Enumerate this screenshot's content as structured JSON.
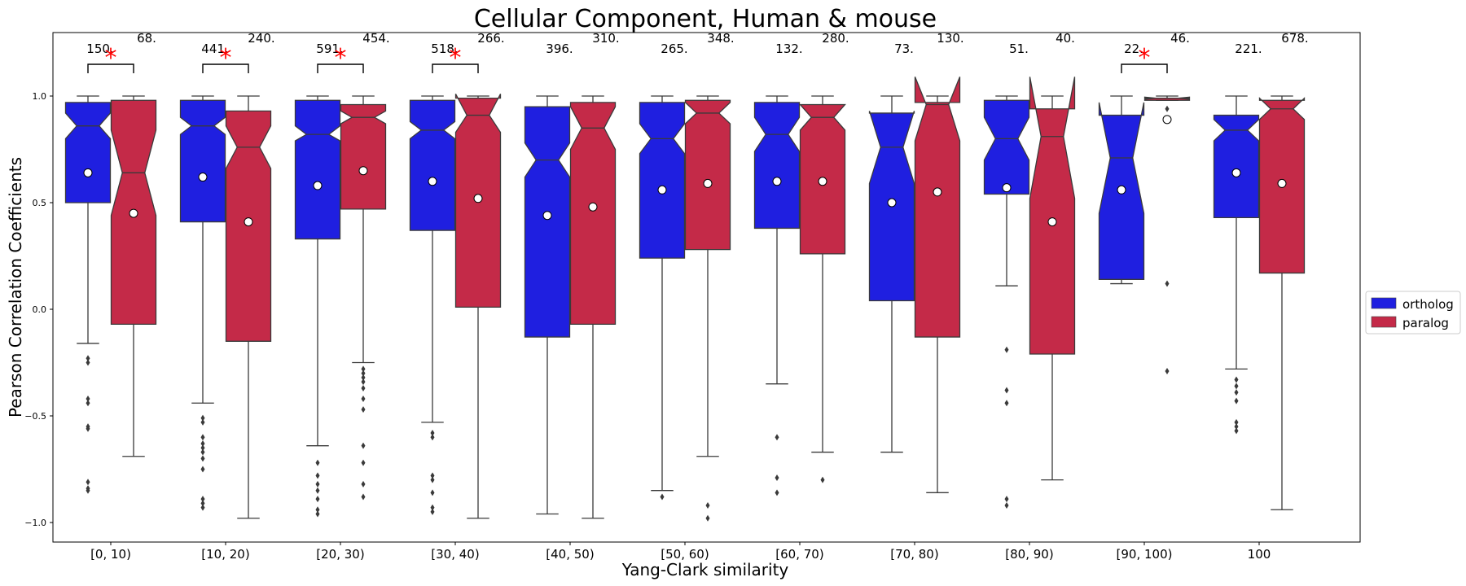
{
  "chart_data": {
    "type": "box",
    "title": "Cellular Component, Human & mouse",
    "xlabel": "Yang-Clark similarity",
    "ylabel": "Pearson Correlation Coefficients",
    "ylim": [
      -1.1,
      1.3
    ],
    "yticks": [
      -1.0,
      -0.5,
      0.0,
      0.5,
      1.0
    ],
    "ytick_labels": [
      "−1.0",
      "−0.5",
      "0.0",
      "0.5",
      "1.0"
    ],
    "categories": [
      "[0, 10)",
      "[10, 20)",
      "[20, 30)",
      "[30, 40)",
      "[40, 50)",
      "[50, 60)",
      "[60, 70)",
      "[70, 80)",
      "[80, 90)",
      "[90, 100)",
      "100"
    ],
    "legend": {
      "position": "right",
      "entries": [
        {
          "name": "ortholog",
          "color": "#1f1fe0"
        },
        {
          "name": "paralog",
          "color": "#c42a48"
        }
      ]
    },
    "significance_marker": "*",
    "significance_color": "#ff0000",
    "series": [
      {
        "name": "ortholog",
        "color": "#1f1fe0",
        "boxes": [
          {
            "count": "150.",
            "lower_whisker": -0.16,
            "q1": 0.5,
            "median": 0.86,
            "q3": 0.97,
            "upper_whisker": 1.0,
            "notch_low": 0.8,
            "notch_high": 0.92,
            "mean": 0.64,
            "outliers": [
              -0.23,
              -0.25,
              -0.42,
              -0.44,
              -0.55,
              -0.56,
              -0.81,
              -0.84,
              -0.85
            ]
          },
          {
            "count": "441.",
            "lower_whisker": -0.44,
            "q1": 0.41,
            "median": 0.86,
            "q3": 0.98,
            "upper_whisker": 1.0,
            "notch_low": 0.82,
            "notch_high": 0.9,
            "mean": 0.62,
            "outliers": [
              -0.51,
              -0.53,
              -0.6,
              -0.63,
              -0.65,
              -0.67,
              -0.7,
              -0.75,
              -0.89,
              -0.91,
              -0.93
            ]
          },
          {
            "count": "591.",
            "lower_whisker": -0.64,
            "q1": 0.33,
            "median": 0.82,
            "q3": 0.98,
            "upper_whisker": 1.0,
            "notch_low": 0.79,
            "notch_high": 0.86,
            "mean": 0.58,
            "outliers": [
              -0.72,
              -0.78,
              -0.82,
              -0.85,
              -0.89,
              -0.94,
              -0.96
            ]
          },
          {
            "count": "518.",
            "lower_whisker": -0.53,
            "q1": 0.37,
            "median": 0.84,
            "q3": 0.98,
            "upper_whisker": 1.0,
            "notch_low": 0.8,
            "notch_high": 0.88,
            "mean": 0.6,
            "outliers": [
              -0.58,
              -0.6,
              -0.78,
              -0.8,
              -0.86,
              -0.93,
              -0.95
            ]
          },
          {
            "count": "396.",
            "lower_whisker": -0.96,
            "q1": -0.13,
            "median": 0.7,
            "q3": 0.95,
            "upper_whisker": 1.0,
            "notch_low": 0.62,
            "notch_high": 0.78,
            "mean": 0.44,
            "outliers": []
          },
          {
            "count": "265.",
            "lower_whisker": -0.85,
            "q1": 0.24,
            "median": 0.8,
            "q3": 0.97,
            "upper_whisker": 1.0,
            "notch_low": 0.73,
            "notch_high": 0.87,
            "mean": 0.56,
            "outliers": [
              -0.88
            ]
          },
          {
            "count": "132.",
            "lower_whisker": -0.35,
            "q1": 0.38,
            "median": 0.82,
            "q3": 0.97,
            "upper_whisker": 1.0,
            "notch_low": 0.74,
            "notch_high": 0.9,
            "mean": 0.6,
            "outliers": [
              -0.6,
              -0.79,
              -0.86
            ]
          },
          {
            "count": "73.",
            "lower_whisker": -0.67,
            "q1": 0.04,
            "median": 0.76,
            "q3": 0.92,
            "upper_whisker": 1.0,
            "notch_low": 0.59,
            "notch_high": 0.93,
            "mean": 0.5,
            "outliers": []
          },
          {
            "count": "51.",
            "lower_whisker": 0.11,
            "q1": 0.54,
            "median": 0.8,
            "q3": 0.98,
            "upper_whisker": 1.0,
            "notch_low": 0.7,
            "notch_high": 0.9,
            "mean": 0.57,
            "outliers": [
              -0.19,
              -0.38,
              -0.44,
              -0.89,
              -0.92
            ]
          },
          {
            "count": "22.",
            "lower_whisker": 0.12,
            "q1": 0.14,
            "median": 0.71,
            "q3": 0.91,
            "upper_whisker": 1.0,
            "notch_low": 0.45,
            "notch_high": 0.97,
            "mean": 0.56,
            "outliers": []
          },
          {
            "count": "221.",
            "lower_whisker": -0.28,
            "q1": 0.43,
            "median": 0.84,
            "q3": 0.91,
            "upper_whisker": 1.0,
            "notch_low": 0.79,
            "notch_high": 0.89,
            "mean": 0.64,
            "outliers": [
              -0.33,
              -0.36,
              -0.39,
              -0.43,
              -0.53,
              -0.55,
              -0.57
            ]
          }
        ]
      },
      {
        "name": "paralog",
        "color": "#c42a48",
        "boxes": [
          {
            "count": "68.",
            "lower_whisker": -0.69,
            "q1": -0.07,
            "median": 0.64,
            "q3": 0.98,
            "upper_whisker": 1.0,
            "notch_low": 0.44,
            "notch_high": 0.84,
            "mean": 0.45,
            "outliers": []
          },
          {
            "count": "240.",
            "lower_whisker": -0.98,
            "q1": -0.15,
            "median": 0.76,
            "q3": 0.93,
            "upper_whisker": 1.0,
            "notch_low": 0.66,
            "notch_high": 0.86,
            "mean": 0.41,
            "outliers": []
          },
          {
            "count": "454.",
            "lower_whisker": -0.25,
            "q1": 0.47,
            "median": 0.9,
            "q3": 0.96,
            "upper_whisker": 1.0,
            "notch_low": 0.87,
            "notch_high": 0.93,
            "mean": 0.65,
            "outliers": [
              -0.28,
              -0.3,
              -0.32,
              -0.34,
              -0.37,
              -0.42,
              -0.47,
              -0.64,
              -0.72,
              -0.82,
              -0.88
            ]
          },
          {
            "count": "266.",
            "lower_whisker": -0.98,
            "q1": 0.01,
            "median": 0.91,
            "q3": 0.99,
            "upper_whisker": 1.0,
            "notch_low": 0.83,
            "notch_high": 1.01,
            "mean": 0.52,
            "outliers": []
          },
          {
            "count": "310.",
            "lower_whisker": -0.98,
            "q1": -0.07,
            "median": 0.85,
            "q3": 0.97,
            "upper_whisker": 1.0,
            "notch_low": 0.75,
            "notch_high": 0.95,
            "mean": 0.48,
            "outliers": []
          },
          {
            "count": "348.",
            "lower_whisker": -0.69,
            "q1": 0.28,
            "median": 0.92,
            "q3": 0.98,
            "upper_whisker": 1.0,
            "notch_low": 0.87,
            "notch_high": 0.97,
            "mean": 0.59,
            "outliers": [
              -0.92,
              -0.98
            ]
          },
          {
            "count": "280.",
            "lower_whisker": -0.67,
            "q1": 0.26,
            "median": 0.9,
            "q3": 0.96,
            "upper_whisker": 1.0,
            "notch_low": 0.84,
            "notch_high": 0.96,
            "mean": 0.6,
            "outliers": [
              -0.8
            ]
          },
          {
            "count": "130.",
            "lower_whisker": -0.86,
            "q1": -0.13,
            "median": 0.96,
            "q3": 0.97,
            "upper_whisker": 1.0,
            "notch_low": 0.79,
            "notch_high": 1.09,
            "mean": 0.55,
            "outliers": []
          },
          {
            "count": "40.",
            "lower_whisker": -0.8,
            "q1": -0.21,
            "median": 0.81,
            "q3": 0.94,
            "upper_whisker": 1.0,
            "notch_low": 0.52,
            "notch_high": 1.09,
            "mean": 0.41,
            "outliers": []
          },
          {
            "count": "46.",
            "lower_whisker": 0.98,
            "q1": 0.98,
            "median": 0.99,
            "q3": 0.99,
            "upper_whisker": 1.0,
            "notch_low": 0.985,
            "notch_high": 0.995,
            "mean": 0.89,
            "outliers": [
              0.94,
              0.12,
              -0.29
            ]
          },
          {
            "count": "678.",
            "lower_whisker": -0.94,
            "q1": 0.17,
            "median": 0.94,
            "q3": 0.98,
            "upper_whisker": 1.0,
            "notch_low": 0.89,
            "notch_high": 0.99,
            "mean": 0.59,
            "outliers": []
          }
        ]
      }
    ],
    "significance": [
      {
        "category": "[0, 10)",
        "significant": true
      },
      {
        "category": "[10, 20)",
        "significant": true
      },
      {
        "category": "[20, 30)",
        "significant": true
      },
      {
        "category": "[30, 40)",
        "significant": true
      },
      {
        "category": "[40, 50)",
        "significant": false
      },
      {
        "category": "[50, 60)",
        "significant": false
      },
      {
        "category": "[60, 70)",
        "significant": false
      },
      {
        "category": "[70, 80)",
        "significant": false
      },
      {
        "category": "[80, 90)",
        "significant": false
      },
      {
        "category": "[90, 100)",
        "significant": true
      },
      {
        "category": "100",
        "significant": false
      }
    ]
  }
}
